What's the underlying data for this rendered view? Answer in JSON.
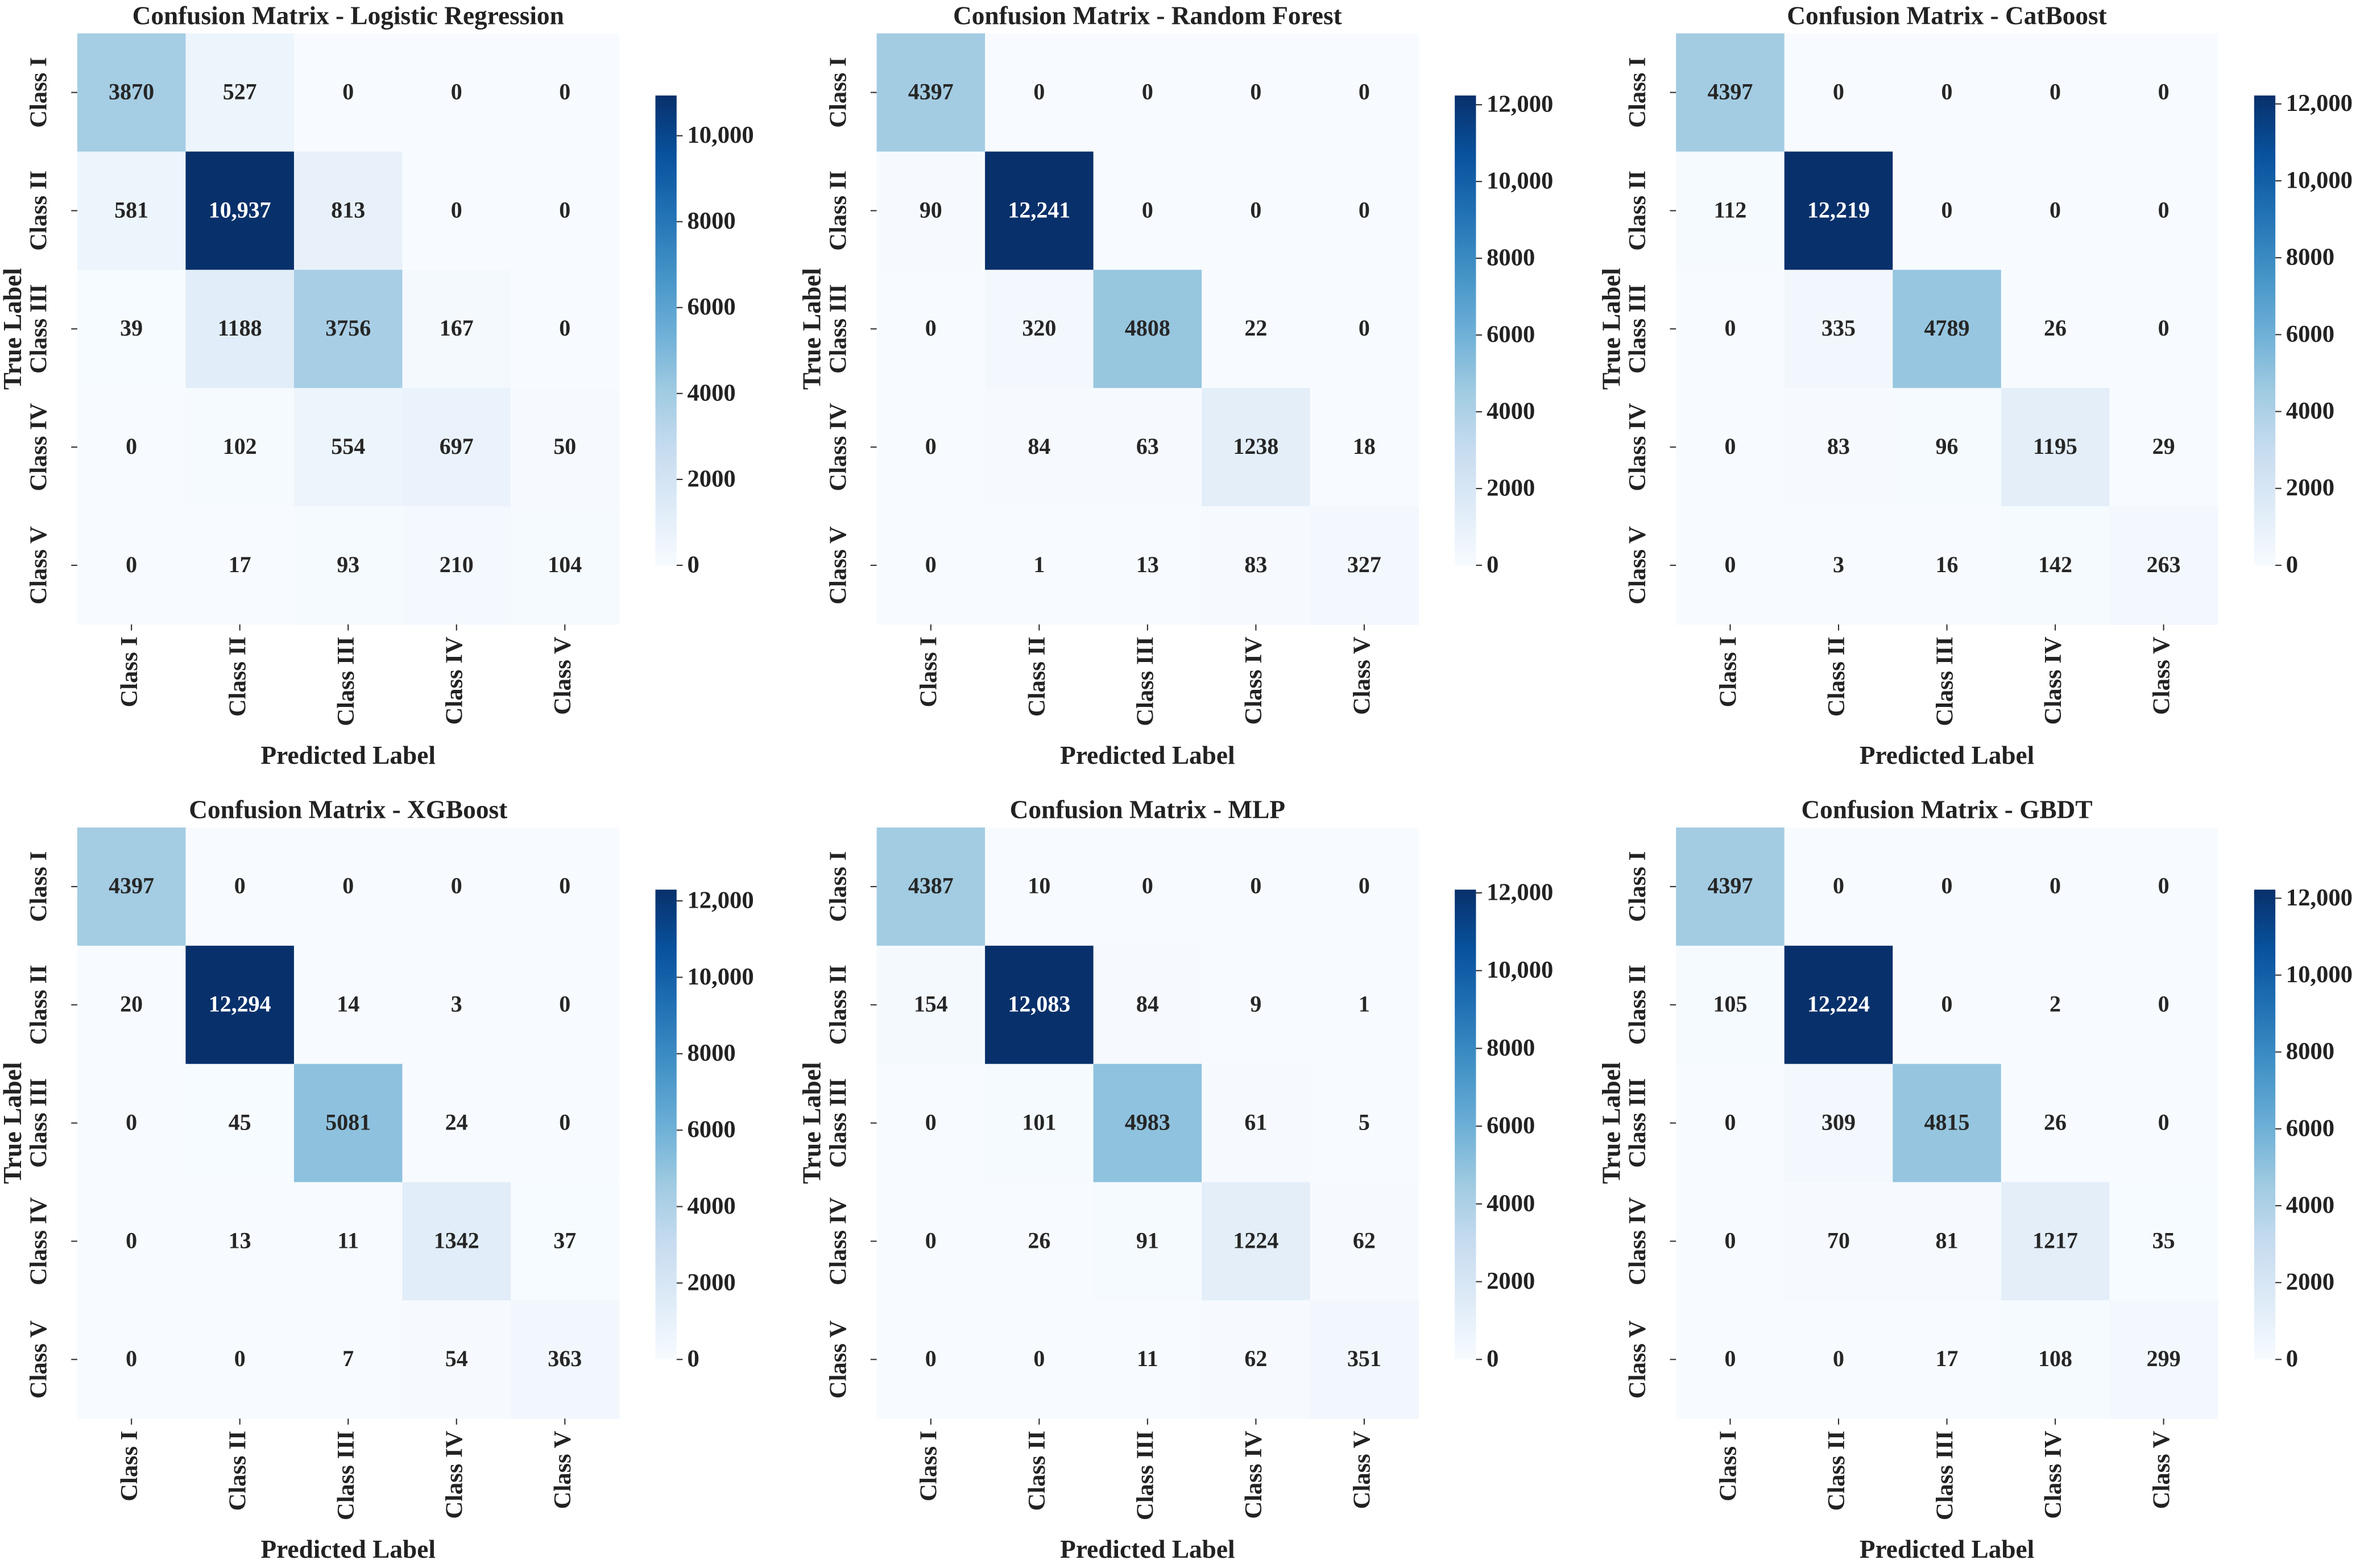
{
  "chart_data": [
    {
      "type": "heatmap",
      "title": "Confusion Matrix - Logistic Regression",
      "xlabel": "Predicted Label",
      "ylabel": "True Label",
      "x": [
        "Class I",
        "Class II",
        "Class III",
        "Class IV",
        "Class V"
      ],
      "y": [
        "Class I",
        "Class II",
        "Class III",
        "Class IV",
        "Class V"
      ],
      "values": [
        [
          3870,
          527,
          0,
          0,
          0
        ],
        [
          581,
          10937,
          813,
          0,
          0
        ],
        [
          39,
          1188,
          3756,
          167,
          0
        ],
        [
          0,
          102,
          554,
          697,
          50
        ],
        [
          0,
          17,
          93,
          210,
          104
        ]
      ],
      "value_labels": [
        [
          "3870",
          "527",
          "0",
          "0",
          "0"
        ],
        [
          "581",
          "10,937",
          "813",
          "0",
          "0"
        ],
        [
          "39",
          "1188",
          "3756",
          "167",
          "0"
        ],
        [
          "0",
          "102",
          "554",
          "697",
          "50"
        ],
        [
          "0",
          "17",
          "93",
          "210",
          "104"
        ]
      ],
      "zlim": [
        0,
        10937
      ],
      "zticks": [
        0,
        2000,
        4000,
        6000,
        8000,
        {
          "value": 10000,
          "label": "10,000"
        }
      ],
      "colormap": [
        "#f7fbff",
        "#deebf7",
        "#c6dbef",
        "#9ecae1",
        "#6baed6",
        "#4292c6",
        "#2171b5",
        "#08519c",
        "#08306b"
      ]
    },
    {
      "type": "heatmap",
      "title": "Confusion Matrix - Random Forest",
      "xlabel": "Predicted Label",
      "ylabel": "True Label",
      "x": [
        "Class I",
        "Class II",
        "Class III",
        "Class IV",
        "Class V"
      ],
      "y": [
        "Class I",
        "Class II",
        "Class III",
        "Class IV",
        "Class V"
      ],
      "values": [
        [
          4397,
          0,
          0,
          0,
          0
        ],
        [
          90,
          12241,
          0,
          0,
          0
        ],
        [
          0,
          320,
          4808,
          22,
          0
        ],
        [
          0,
          84,
          63,
          1238,
          18
        ],
        [
          0,
          1,
          13,
          83,
          327
        ]
      ],
      "value_labels": [
        [
          "4397",
          "0",
          "0",
          "0",
          "0"
        ],
        [
          "90",
          "12,241",
          "0",
          "0",
          "0"
        ],
        [
          "0",
          "320",
          "4808",
          "22",
          "0"
        ],
        [
          "0",
          "84",
          "63",
          "1238",
          "18"
        ],
        [
          "0",
          "1",
          "13",
          "83",
          "327"
        ]
      ],
      "zlim": [
        0,
        12241
      ],
      "zticks": [
        0,
        2000,
        4000,
        6000,
        8000,
        {
          "value": 10000,
          "label": "10,000"
        },
        {
          "value": 12000,
          "label": "12,000"
        }
      ],
      "colormap": [
        "#f7fbff",
        "#deebf7",
        "#c6dbef",
        "#9ecae1",
        "#6baed6",
        "#4292c6",
        "#2171b5",
        "#08519c",
        "#08306b"
      ]
    },
    {
      "type": "heatmap",
      "title": "Confusion Matrix - CatBoost",
      "xlabel": "Predicted Label",
      "ylabel": "True Label",
      "x": [
        "Class I",
        "Class II",
        "Class III",
        "Class IV",
        "Class V"
      ],
      "y": [
        "Class I",
        "Class II",
        "Class III",
        "Class IV",
        "Class V"
      ],
      "values": [
        [
          4397,
          0,
          0,
          0,
          0
        ],
        [
          112,
          12219,
          0,
          0,
          0
        ],
        [
          0,
          335,
          4789,
          26,
          0
        ],
        [
          0,
          83,
          96,
          1195,
          29
        ],
        [
          0,
          3,
          16,
          142,
          263
        ]
      ],
      "value_labels": [
        [
          "4397",
          "0",
          "0",
          "0",
          "0"
        ],
        [
          "112",
          "12,219",
          "0",
          "0",
          "0"
        ],
        [
          "0",
          "335",
          "4789",
          "26",
          "0"
        ],
        [
          "0",
          "83",
          "96",
          "1195",
          "29"
        ],
        [
          "0",
          "3",
          "16",
          "142",
          "263"
        ]
      ],
      "zlim": [
        0,
        12219
      ],
      "zticks": [
        0,
        2000,
        4000,
        6000,
        8000,
        {
          "value": 10000,
          "label": "10,000"
        },
        {
          "value": 12000,
          "label": "12,000"
        }
      ],
      "colormap": [
        "#f7fbff",
        "#deebf7",
        "#c6dbef",
        "#9ecae1",
        "#6baed6",
        "#4292c6",
        "#2171b5",
        "#08519c",
        "#08306b"
      ]
    },
    {
      "type": "heatmap",
      "title": "Confusion Matrix - XGBoost",
      "xlabel": "Predicted Label",
      "ylabel": "True Label",
      "x": [
        "Class I",
        "Class II",
        "Class III",
        "Class IV",
        "Class V"
      ],
      "y": [
        "Class I",
        "Class II",
        "Class III",
        "Class IV",
        "Class V"
      ],
      "values": [
        [
          4397,
          0,
          0,
          0,
          0
        ],
        [
          20,
          12294,
          14,
          3,
          0
        ],
        [
          0,
          45,
          5081,
          24,
          0
        ],
        [
          0,
          13,
          11,
          1342,
          37
        ],
        [
          0,
          0,
          7,
          54,
          363
        ]
      ],
      "value_labels": [
        [
          "4397",
          "0",
          "0",
          "0",
          "0"
        ],
        [
          "20",
          "12,294",
          "14",
          "3",
          "0"
        ],
        [
          "0",
          "45",
          "5081",
          "24",
          "0"
        ],
        [
          "0",
          "13",
          "11",
          "1342",
          "37"
        ],
        [
          "0",
          "0",
          "7",
          "54",
          "363"
        ]
      ],
      "zlim": [
        0,
        12294
      ],
      "zticks": [
        0,
        2000,
        4000,
        6000,
        8000,
        {
          "value": 10000,
          "label": "10,000"
        },
        {
          "value": 12000,
          "label": "12,000"
        }
      ],
      "colormap": [
        "#f7fbff",
        "#deebf7",
        "#c6dbef",
        "#9ecae1",
        "#6baed6",
        "#4292c6",
        "#2171b5",
        "#08519c",
        "#08306b"
      ]
    },
    {
      "type": "heatmap",
      "title": "Confusion Matrix - MLP",
      "xlabel": "Predicted Label",
      "ylabel": "True Label",
      "x": [
        "Class I",
        "Class II",
        "Class III",
        "Class IV",
        "Class V"
      ],
      "y": [
        "Class I",
        "Class II",
        "Class III",
        "Class IV",
        "Class V"
      ],
      "values": [
        [
          4387,
          10,
          0,
          0,
          0
        ],
        [
          154,
          12083,
          84,
          9,
          1
        ],
        [
          0,
          101,
          4983,
          61,
          5
        ],
        [
          0,
          26,
          91,
          1224,
          62
        ],
        [
          0,
          0,
          11,
          62,
          351
        ]
      ],
      "value_labels": [
        [
          "4387",
          "10",
          "0",
          "0",
          "0"
        ],
        [
          "154",
          "12,083",
          "84",
          "9",
          "1"
        ],
        [
          "0",
          "101",
          "4983",
          "61",
          "5"
        ],
        [
          "0",
          "26",
          "91",
          "1224",
          "62"
        ],
        [
          "0",
          "0",
          "11",
          "62",
          "351"
        ]
      ],
      "zlim": [
        0,
        12083
      ],
      "zticks": [
        0,
        2000,
        4000,
        6000,
        8000,
        {
          "value": 10000,
          "label": "10,000"
        },
        {
          "value": 12000,
          "label": "12,000"
        }
      ],
      "colormap": [
        "#f7fbff",
        "#deebf7",
        "#c6dbef",
        "#9ecae1",
        "#6baed6",
        "#4292c6",
        "#2171b5",
        "#08519c",
        "#08306b"
      ]
    },
    {
      "type": "heatmap",
      "title": "Confusion Matrix - GBDT",
      "xlabel": "Predicted Label",
      "ylabel": "True Label",
      "x": [
        "Class I",
        "Class II",
        "Class III",
        "Class IV",
        "Class V"
      ],
      "y": [
        "Class I",
        "Class II",
        "Class III",
        "Class IV",
        "Class V"
      ],
      "values": [
        [
          4397,
          0,
          0,
          0,
          0
        ],
        [
          105,
          12224,
          0,
          2,
          0
        ],
        [
          0,
          309,
          4815,
          26,
          0
        ],
        [
          0,
          70,
          81,
          1217,
          35
        ],
        [
          0,
          0,
          17,
          108,
          299
        ]
      ],
      "value_labels": [
        [
          "4397",
          "0",
          "0",
          "0",
          "0"
        ],
        [
          "105",
          "12,224",
          "0",
          "2",
          "0"
        ],
        [
          "0",
          "309",
          "4815",
          "26",
          "0"
        ],
        [
          "0",
          "70",
          "81",
          "1217",
          "35"
        ],
        [
          "0",
          "0",
          "17",
          "108",
          "299"
        ]
      ],
      "zlim": [
        0,
        12224
      ],
      "zticks": [
        0,
        2000,
        4000,
        6000,
        8000,
        {
          "value": 10000,
          "label": "10,000"
        },
        {
          "value": 12000,
          "label": "12,000"
        }
      ],
      "colormap": [
        "#f7fbff",
        "#deebf7",
        "#c6dbef",
        "#9ecae1",
        "#6baed6",
        "#4292c6",
        "#2171b5",
        "#08519c",
        "#08306b"
      ]
    }
  ]
}
